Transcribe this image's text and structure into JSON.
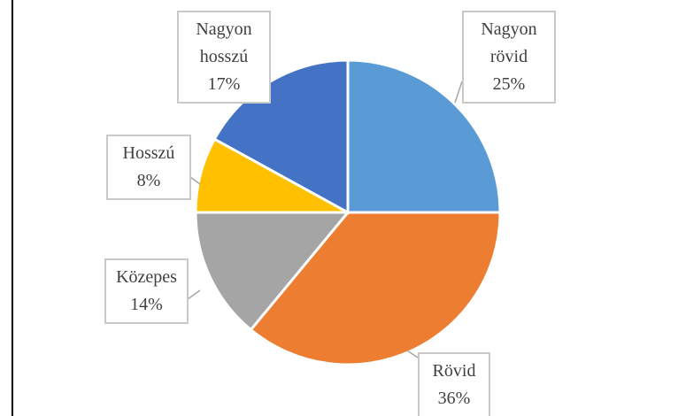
{
  "chart_data": {
    "type": "pie",
    "categories": [
      "Nagyon rövid",
      "Rövid",
      "Közepes",
      "Hosszú",
      "Nagyon hosszú"
    ],
    "values": [
      25,
      36,
      14,
      8,
      17
    ],
    "value_labels": [
      "25%",
      "36%",
      "14%",
      "8%",
      "17%"
    ],
    "colors": [
      "#5b9bd5",
      "#ed7d31",
      "#a5a5a5",
      "#ffc000",
      "#4472c4"
    ]
  }
}
